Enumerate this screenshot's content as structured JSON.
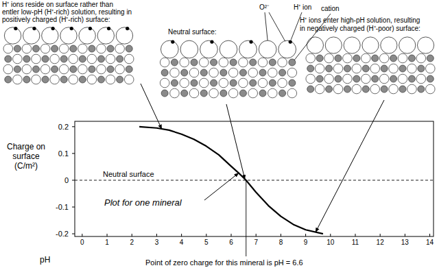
{
  "panels": [
    {
      "caption": [
        "H⁺ ions reside on surface rather than",
        "entler low-pH (H⁺-rich) solution, resulting in",
        "positively charged (H⁺-rich) surface:"
      ]
    },
    {
      "caption": [
        "Neutral surface:"
      ],
      "labels": [
        "O²⁻",
        "H⁺ ion",
        "cation"
      ]
    },
    {
      "caption": [
        "H⁺ ions enter high-pH solution, resulting",
        "in negatively charged (H⁺-poor) surface:"
      ]
    }
  ],
  "chart_data": {
    "type": "line",
    "color": "#000000",
    "x": [
      2.3,
      3,
      3.5,
      4,
      4.5,
      5,
      5.5,
      6,
      6.3,
      6.6,
      7,
      7.5,
      8,
      8.5,
      9,
      9.7
    ],
    "values": [
      0.2,
      0.195,
      0.187,
      0.172,
      0.153,
      0.127,
      0.095,
      0.052,
      0.027,
      0,
      -0.045,
      -0.095,
      -0.135,
      -0.165,
      -0.185,
      -0.2
    ],
    "xlim": [
      -0.3,
      14.15
    ],
    "ylim": [
      -0.21,
      0.22
    ],
    "xticks": [
      0,
      1,
      2,
      3,
      4,
      5,
      6,
      7,
      8,
      9,
      10,
      11,
      12,
      13,
      14
    ],
    "yticks": [
      -0.2,
      -0.1,
      0,
      0.1,
      0.2
    ],
    "x_label": "pH",
    "y_label": [
      "Charge on",
      "surface",
      "(C/m²)"
    ],
    "neutral_label": "Neutral surface",
    "neutral_y": 0,
    "curve_label": "Plot for one mineral",
    "zero_charge_label": "Point of zero charge for this mineral is pH = 6.6",
    "zero_charge_x": 6.6
  }
}
